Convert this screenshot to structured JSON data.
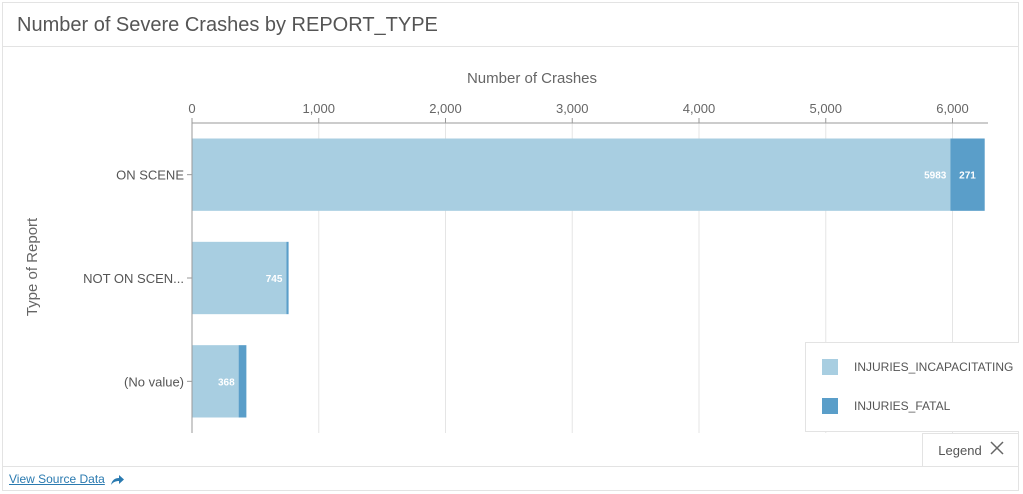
{
  "header": {
    "title": "Number of Severe Crashes by REPORT_TYPE"
  },
  "colors": {
    "incapacitating": "#a8cee1",
    "fatal": "#5a9ec9",
    "grid": "#e5e5e5",
    "axis": "#9a9a9a"
  },
  "chart_data": {
    "type": "bar",
    "orientation": "horizontal",
    "stacked": true,
    "title": "Number of Severe Crashes by REPORT_TYPE",
    "xlabel": "Number of Crashes",
    "ylabel": "Type of Report",
    "categories": [
      "ON SCENE",
      "NOT ON SCEN...",
      "(No value)"
    ],
    "series": [
      {
        "name": "INJURIES_INCAPACITATING",
        "values": [
          5983,
          745,
          368
        ],
        "labels": [
          "5983",
          "745",
          "368"
        ]
      },
      {
        "name": "INJURIES_FATAL",
        "values": [
          271,
          17,
          61
        ],
        "labels": [
          "271",
          "",
          ""
        ]
      }
    ],
    "xlim": [
      0,
      6280
    ],
    "ticks": [
      0,
      1000,
      2000,
      3000,
      4000,
      5000,
      6000
    ],
    "tick_labels": [
      "0",
      "1,000",
      "2,000",
      "3,000",
      "4,000",
      "5,000",
      "6,000"
    ],
    "grid": true,
    "axis_position": "top",
    "legend_position": "bottom-right"
  },
  "legend": {
    "items": [
      {
        "label": "INJURIES_INCAPACITATING",
        "color": "#a8cee1"
      },
      {
        "label": "INJURIES_FATAL",
        "color": "#5a9ec9"
      }
    ],
    "toggle_label": "Legend",
    "close_icon": "close-x-icon"
  },
  "footer": {
    "source_link": "View Source Data",
    "share_icon": "share-arrow-icon"
  }
}
